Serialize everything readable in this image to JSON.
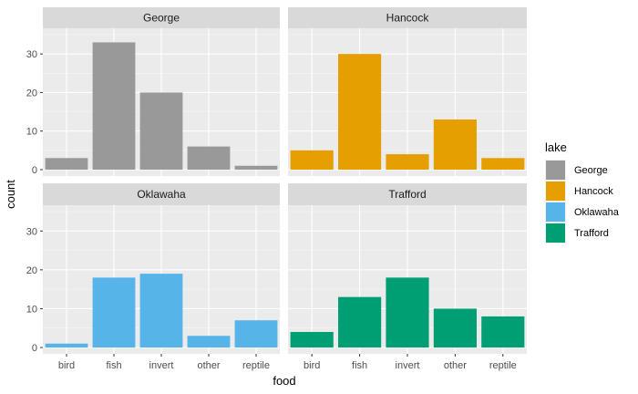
{
  "chart_data": {
    "type": "bar",
    "facet_by": "lake",
    "categories": [
      "bird",
      "fish",
      "invert",
      "other",
      "reptile"
    ],
    "xlabel": "food",
    "ylabel": "count",
    "ylim": [
      0,
      35
    ],
    "y_ticks": [
      0,
      10,
      20,
      30
    ],
    "grid": true,
    "legend": {
      "title": "lake",
      "placement": "right"
    },
    "series": [
      {
        "name": "George",
        "color": "#999999",
        "values": [
          3,
          33,
          20,
          6,
          1
        ]
      },
      {
        "name": "Hancock",
        "color": "#E69F00",
        "values": [
          5,
          30,
          4,
          13,
          3
        ]
      },
      {
        "name": "Oklawaha",
        "color": "#56B4E9",
        "values": [
          1,
          18,
          19,
          3,
          7
        ]
      },
      {
        "name": "Trafford",
        "color": "#009E73",
        "values": [
          4,
          13,
          18,
          10,
          8
        ]
      }
    ]
  }
}
